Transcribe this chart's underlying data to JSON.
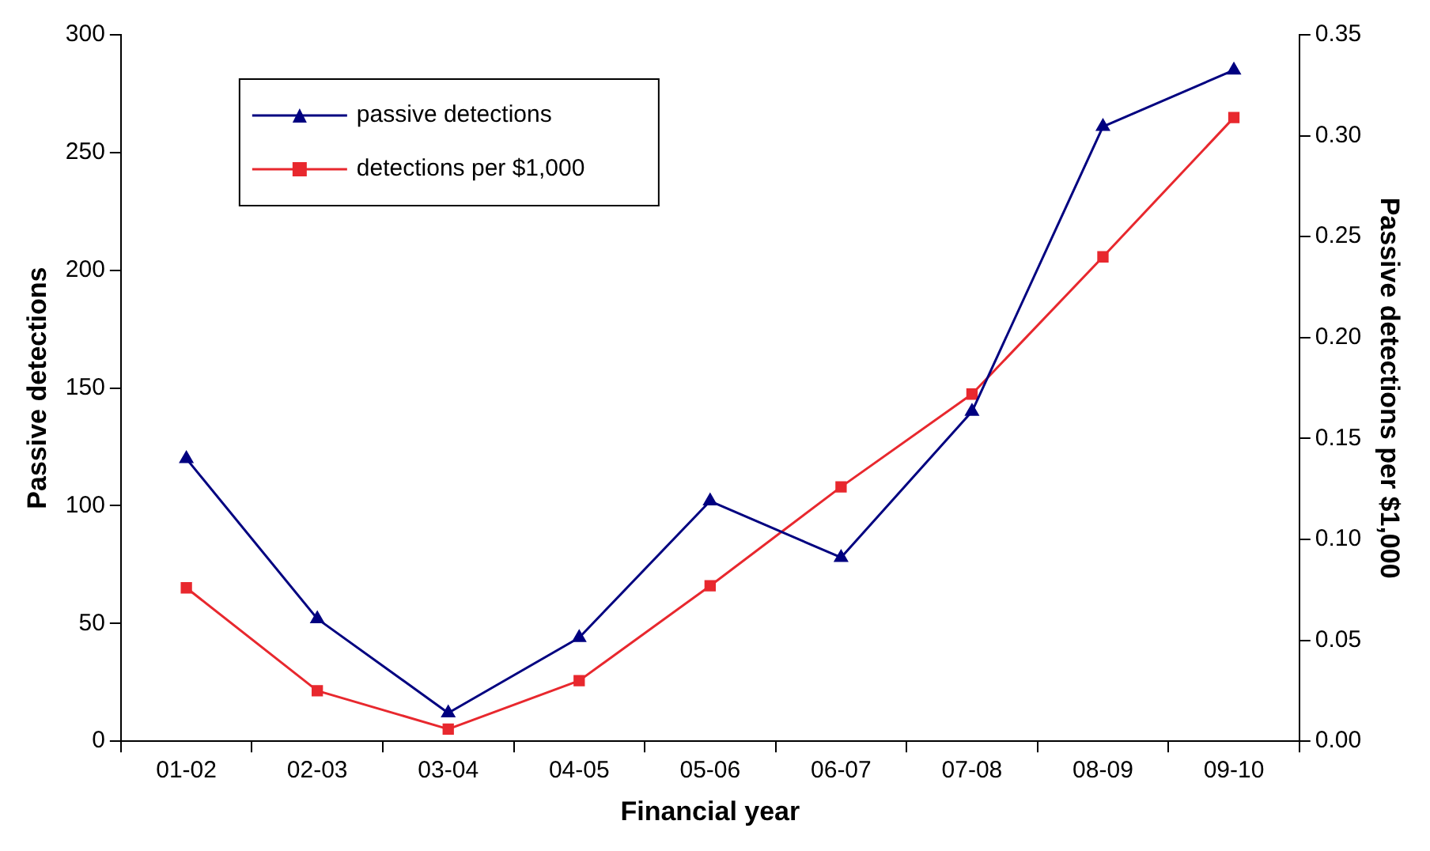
{
  "chart_data": {
    "type": "line",
    "xlabel": "Financial year",
    "ylabel": "Passive detections",
    "y2label": "Passive detections per $1,000",
    "categories": [
      "01-02",
      "02-03",
      "03-04",
      "04-05",
      "05-06",
      "06-07",
      "07-08",
      "08-09",
      "09-10"
    ],
    "series": [
      {
        "name": "passive detections",
        "color": "#000080",
        "marker": "triangle",
        "values": [
          120,
          52,
          12,
          44,
          102,
          78,
          140,
          261,
          285
        ]
      },
      {
        "name": "detections per $1,000",
        "color": "#e8282e",
        "marker": "square",
        "axis": "y2",
        "values": [
          0.076,
          0.025,
          0.006,
          0.03,
          0.077,
          0.126,
          0.172,
          0.24,
          0.309
        ]
      }
    ],
    "ylim": [
      0,
      300
    ],
    "yticks": [
      0,
      50,
      100,
      150,
      200,
      250,
      300
    ],
    "y2lim": [
      0,
      0.35
    ],
    "y2ticks": [
      {
        "value": 0,
        "label": "0.00"
      },
      {
        "value": 0.05,
        "label": "0.05"
      },
      {
        "value": 0.1,
        "label": "0.10"
      },
      {
        "value": 0.15,
        "label": "0.15"
      },
      {
        "value": 0.2,
        "label": "0.20"
      },
      {
        "value": 0.25,
        "label": "0.25"
      },
      {
        "value": 0.3,
        "label": "0.30"
      },
      {
        "value": 0.35,
        "label": "0.35"
      }
    ],
    "grid": false,
    "legend": "top left",
    "line_style": "solid"
  }
}
